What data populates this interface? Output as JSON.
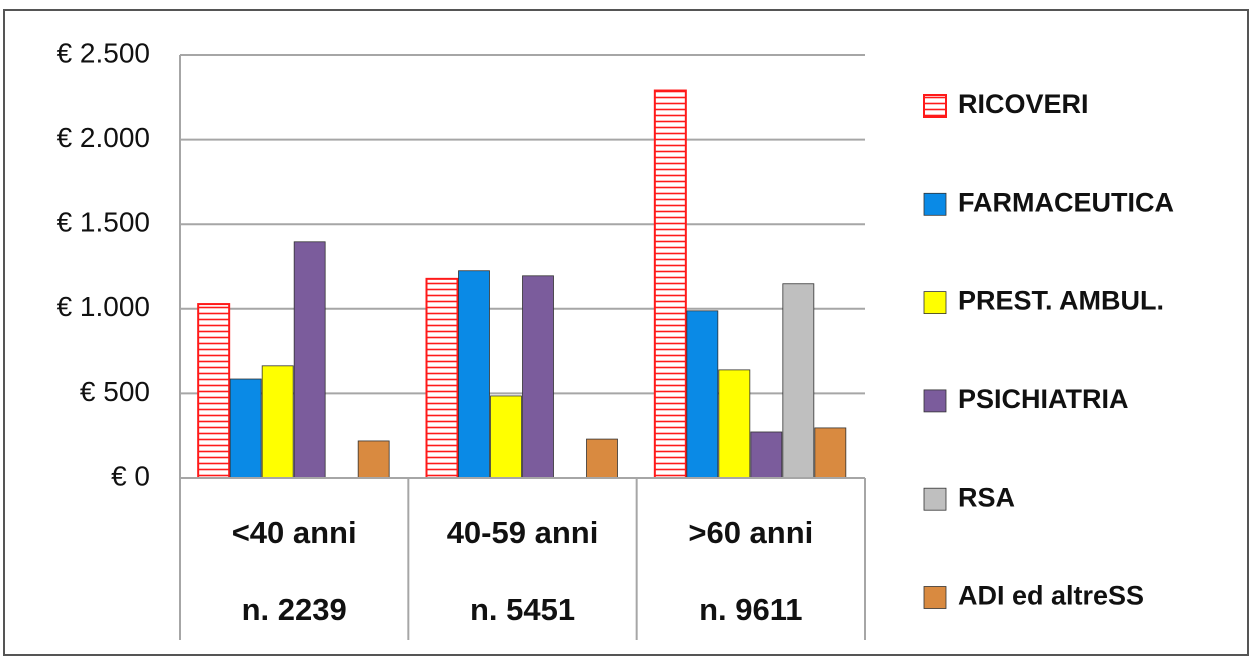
{
  "chart_data": {
    "type": "bar",
    "categories": [
      "<40 anni",
      "40-59 anni",
      ">60 anni"
    ],
    "category_counts": [
      "n. 2239",
      "n. 5451",
      "n. 9611"
    ],
    "series": [
      {
        "name": "RICOVERI",
        "color": "#ff1a1a",
        "hatch": true,
        "values": [
          1028,
          1177,
          2290
        ]
      },
      {
        "name": "FARMACEUTICA",
        "color": "#0a8ae6",
        "values": [
          585,
          1225,
          988
        ]
      },
      {
        "name": "PREST. AMBUL.",
        "color": "#ffff00",
        "values": [
          663,
          485,
          639
        ]
      },
      {
        "name": "PSICHIATRIA",
        "color": "#7b5c9c",
        "values": [
          1396,
          1195,
          272
        ]
      },
      {
        "name": "RSA",
        "color": "#bfbfbf",
        "values": [
          0,
          0,
          1148
        ]
      },
      {
        "name": "ADI ed altreSS",
        "color": "#d98a40",
        "values": [
          219,
          230,
          296
        ]
      }
    ],
    "ylim": [
      0,
      2500
    ],
    "yticks": [
      {
        "value": 0,
        "label": "€ 0"
      },
      {
        "value": 500,
        "label": "€ 500"
      },
      {
        "value": 1000,
        "label": "€ 1.000"
      },
      {
        "value": 1500,
        "label": "€ 1.500"
      },
      {
        "value": 2000,
        "label": "€ 2.000"
      },
      {
        "value": 2500,
        "label": "€ 2.500"
      }
    ],
    "grid": true,
    "legend": "right"
  }
}
